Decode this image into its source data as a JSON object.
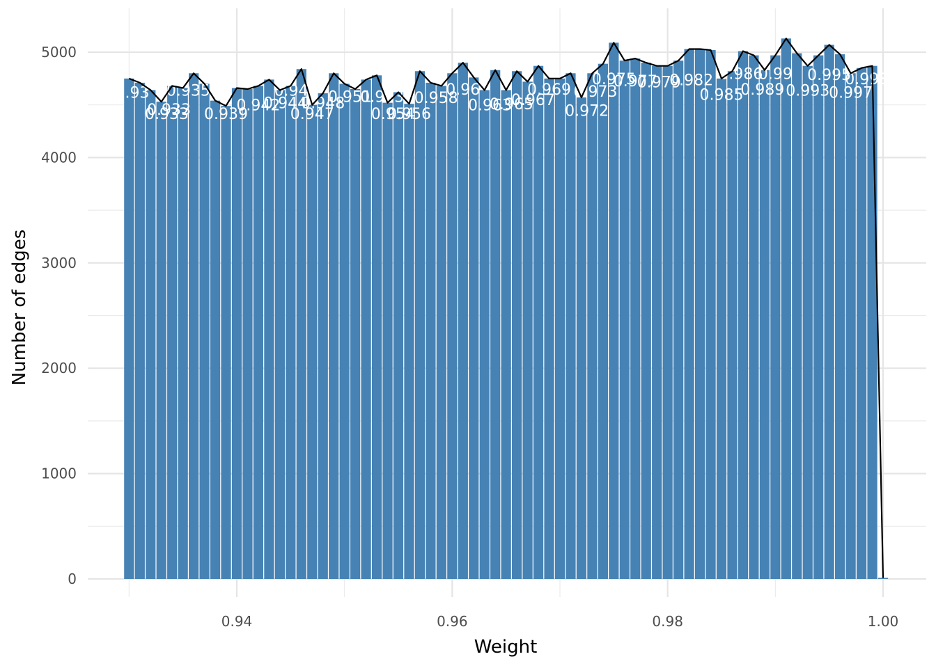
{
  "chart_data": {
    "type": "bar",
    "title": "",
    "xlabel": "Weight",
    "ylabel": "Number of edges",
    "xlim": [
      0.9265,
      1.004
    ],
    "ylim": [
      0,
      5250
    ],
    "x_ticks": [
      "0.94",
      "0.96",
      "0.98",
      "1.00"
    ],
    "x_tick_values": [
      0.94,
      0.96,
      0.98,
      1.0
    ],
    "y_ticks": [
      "0",
      "1000",
      "2000",
      "3000",
      "4000",
      "5000"
    ],
    "y_tick_values": [
      0,
      1000,
      2000,
      3000,
      4000,
      5000
    ],
    "grid": true,
    "bar_width": 0.00092,
    "x": [
      0.93,
      0.931,
      0.932,
      0.933,
      0.934,
      0.935,
      0.936,
      0.937,
      0.938,
      0.939,
      0.94,
      0.941,
      0.942,
      0.943,
      0.944,
      0.945,
      0.946,
      0.947,
      0.948,
      0.949,
      0.95,
      0.951,
      0.952,
      0.953,
      0.954,
      0.955,
      0.956,
      0.957,
      0.958,
      0.959,
      0.96,
      0.961,
      0.962,
      0.963,
      0.964,
      0.965,
      0.966,
      0.967,
      0.968,
      0.969,
      0.97,
      0.971,
      0.972,
      0.973,
      0.974,
      0.975,
      0.976,
      0.977,
      0.978,
      0.979,
      0.98,
      0.981,
      0.982,
      0.983,
      0.984,
      0.985,
      0.986,
      0.987,
      0.988,
      0.989,
      0.99,
      0.991,
      0.992,
      0.993,
      0.994,
      0.995,
      0.996,
      0.997,
      0.998,
      0.999,
      1.0
    ],
    "values": [
      4750,
      4710,
      4640,
      4530,
      4680,
      4660,
      4800,
      4700,
      4540,
      4490,
      4660,
      4650,
      4680,
      4740,
      4640,
      4680,
      4840,
      4500,
      4610,
      4800,
      4700,
      4650,
      4740,
      4780,
      4520,
      4620,
      4510,
      4820,
      4710,
      4680,
      4800,
      4900,
      4760,
      4640,
      4830,
      4640,
      4820,
      4720,
      4870,
      4750,
      4750,
      4800,
      4570,
      4800,
      4890,
      5090,
      4920,
      4940,
      4900,
      4870,
      4870,
      4920,
      5030,
      5030,
      5020,
      4750,
      4820,
      5010,
      4970,
      4830,
      4970,
      5130,
      4990,
      4870,
      4970,
      5070,
      4980,
      4800,
      4850,
      4870,
      10
    ],
    "series": [
      {
        "name": "",
        "kind": "bar",
        "color": "#4682b4"
      },
      {
        "name": "",
        "kind": "line",
        "color": "#000000"
      }
    ],
    "data_labels": [
      {
        "text": "0.93",
        "x": 0.9303,
        "y": 4620
      },
      {
        "text": "0.933",
        "x": 0.9335,
        "y": 4420
      },
      {
        "text": "0.933",
        "x": 0.9337,
        "y": 4460
      },
      {
        "text": "0.935",
        "x": 0.9355,
        "y": 4640
      },
      {
        "text": "0.939",
        "x": 0.939,
        "y": 4420
      },
      {
        "text": "0.942",
        "x": 0.942,
        "y": 4500
      },
      {
        "text": "0.944",
        "x": 0.9445,
        "y": 4520
      },
      {
        "text": "0.945",
        "x": 0.9455,
        "y": 4640
      },
      {
        "text": "0.947",
        "x": 0.947,
        "y": 4420
      },
      {
        "text": "0.948",
        "x": 0.948,
        "y": 4520
      },
      {
        "text": "0.951",
        "x": 0.9505,
        "y": 4580
      },
      {
        "text": "0.953",
        "x": 0.9535,
        "y": 4580
      },
      {
        "text": "0.954",
        "x": 0.9545,
        "y": 4420
      },
      {
        "text": "0.956",
        "x": 0.956,
        "y": 4420
      },
      {
        "text": "0.958",
        "x": 0.9585,
        "y": 4570
      },
      {
        "text": "0.96",
        "x": 0.961,
        "y": 4650
      },
      {
        "text": "0.963",
        "x": 0.9635,
        "y": 4500
      },
      {
        "text": "0.965",
        "x": 0.9655,
        "y": 4510
      },
      {
        "text": "0.967",
        "x": 0.9675,
        "y": 4550
      },
      {
        "text": "0.969",
        "x": 0.969,
        "y": 4650
      },
      {
        "text": "0.972",
        "x": 0.9725,
        "y": 4450
      },
      {
        "text": "0.973",
        "x": 0.9733,
        "y": 4630
      },
      {
        "text": "0.975",
        "x": 0.975,
        "y": 4750
      },
      {
        "text": "0.977",
        "x": 0.977,
        "y": 4730
      },
      {
        "text": "0.979",
        "x": 0.9792,
        "y": 4720
      },
      {
        "text": "0.982",
        "x": 0.9822,
        "y": 4740
      },
      {
        "text": "0.985",
        "x": 0.985,
        "y": 4600
      },
      {
        "text": "0.986",
        "x": 0.9868,
        "y": 4800
      },
      {
        "text": "0.989",
        "x": 0.9888,
        "y": 4650
      },
      {
        "text": "0.99",
        "x": 0.99,
        "y": 4800
      },
      {
        "text": "0.993",
        "x": 0.993,
        "y": 4640
      },
      {
        "text": "0.995",
        "x": 0.995,
        "y": 4790
      },
      {
        "text": "0.997",
        "x": 0.997,
        "y": 4620
      },
      {
        "text": "0.998",
        "x": 0.9985,
        "y": 4750
      }
    ]
  }
}
